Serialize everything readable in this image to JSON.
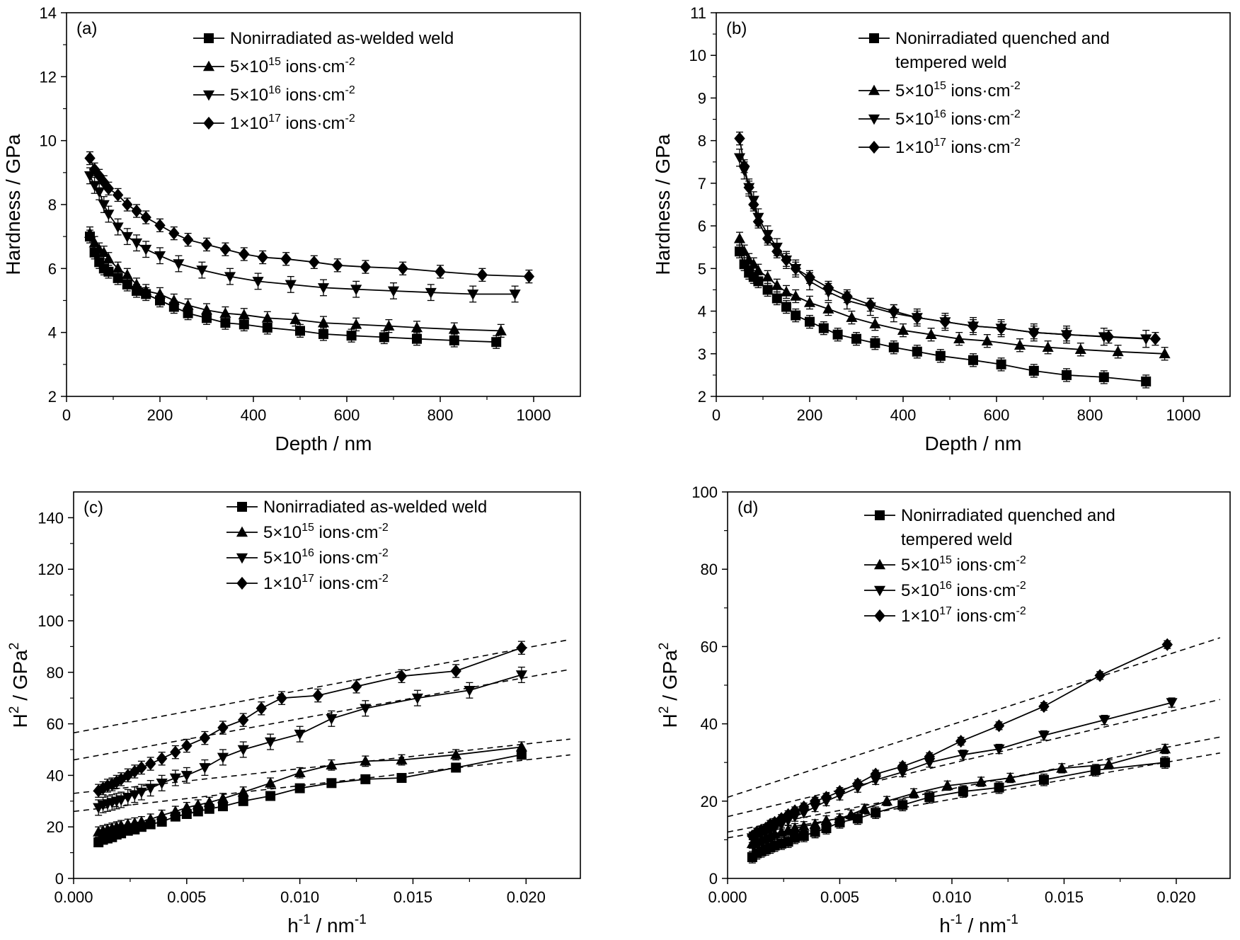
{
  "chart_data": [
    {
      "panel": "(a)",
      "type": "line",
      "xlabel": "Depth / nm",
      "ylabel": "Hardness / GPa",
      "xlim": [
        0,
        1100
      ],
      "ylim": [
        2,
        14
      ],
      "xticks": [
        0,
        200,
        400,
        600,
        800,
        1000
      ],
      "yticks": [
        2,
        4,
        6,
        8,
        10,
        12,
        14
      ],
      "legend": {
        "position": "top-right"
      },
      "series": [
        {
          "name": "Nonirradiated as-welded weld",
          "marker": "square",
          "x": [
            50,
            60,
            70,
            80,
            90,
            110,
            130,
            150,
            170,
            200,
            230,
            260,
            300,
            340,
            380,
            430,
            500,
            550,
            610,
            680,
            750,
            830,
            920
          ],
          "y": [
            7.0,
            6.5,
            6.2,
            6.0,
            5.9,
            5.7,
            5.5,
            5.3,
            5.2,
            5.0,
            4.8,
            4.6,
            4.45,
            4.3,
            4.25,
            4.15,
            4.05,
            3.95,
            3.9,
            3.85,
            3.8,
            3.75,
            3.7
          ],
          "err": 0.2
        },
        {
          "name": "5×10<sup>15</sup> ions·cm<sup>-2</sup>",
          "marker": "triangle-up",
          "x": [
            50,
            60,
            70,
            80,
            90,
            110,
            130,
            150,
            170,
            200,
            230,
            260,
            300,
            340,
            380,
            430,
            490,
            550,
            620,
            690,
            750,
            830,
            930
          ],
          "y": [
            7.1,
            6.8,
            6.6,
            6.5,
            6.3,
            6.0,
            5.8,
            5.5,
            5.3,
            5.2,
            5.0,
            4.85,
            4.7,
            4.6,
            4.55,
            4.45,
            4.4,
            4.3,
            4.25,
            4.2,
            4.15,
            4.1,
            4.05
          ],
          "err": 0.2
        },
        {
          "name": "5×10<sup>16</sup> ions·cm<sup>-2</sup>",
          "marker": "triangle-down",
          "x": [
            50,
            60,
            70,
            80,
            90,
            110,
            130,
            150,
            170,
            200,
            240,
            290,
            350,
            410,
            480,
            550,
            620,
            700,
            780,
            870,
            960
          ],
          "y": [
            8.9,
            8.6,
            8.4,
            8.0,
            7.7,
            7.3,
            7.0,
            6.8,
            6.6,
            6.4,
            6.15,
            5.95,
            5.75,
            5.6,
            5.5,
            5.4,
            5.35,
            5.3,
            5.25,
            5.2,
            5.2
          ],
          "err": 0.25
        },
        {
          "name": "1×10<sup>17</sup> ions·cm<sup>-2</sup>",
          "marker": "diamond",
          "x": [
            50,
            60,
            70,
            80,
            90,
            110,
            130,
            150,
            170,
            200,
            230,
            260,
            300,
            340,
            380,
            420,
            470,
            530,
            580,
            640,
            720,
            800,
            890,
            990
          ],
          "y": [
            9.45,
            9.1,
            8.9,
            8.7,
            8.5,
            8.3,
            8.0,
            7.8,
            7.6,
            7.35,
            7.1,
            6.9,
            6.75,
            6.6,
            6.45,
            6.35,
            6.3,
            6.2,
            6.1,
            6.05,
            6.0,
            5.9,
            5.8,
            5.75
          ],
          "err": 0.2
        }
      ]
    },
    {
      "panel": "(b)",
      "type": "line",
      "xlabel": "Depth / nm",
      "ylabel": "Hardness / GPa",
      "xlim": [
        0,
        1100
      ],
      "ylim": [
        2,
        11
      ],
      "xticks": [
        0,
        200,
        400,
        600,
        800,
        1000
      ],
      "yticks": [
        2,
        3,
        4,
        5,
        6,
        7,
        8,
        9,
        10,
        11
      ],
      "legend": {
        "position": "top-right"
      },
      "series": [
        {
          "name": "Nonirradiated quenched and|tempered weld",
          "marker": "square",
          "x": [
            50,
            60,
            70,
            80,
            90,
            110,
            130,
            150,
            170,
            200,
            230,
            260,
            300,
            340,
            380,
            430,
            480,
            550,
            610,
            680,
            750,
            830,
            920
          ],
          "y": [
            5.4,
            5.1,
            4.9,
            4.8,
            4.7,
            4.5,
            4.3,
            4.1,
            3.9,
            3.75,
            3.6,
            3.45,
            3.35,
            3.25,
            3.15,
            3.05,
            2.95,
            2.85,
            2.75,
            2.6,
            2.5,
            2.45,
            2.35
          ],
          "err": 0.15
        },
        {
          "name": "5×10<sup>15</sup> ions·cm<sup>-2</sup>",
          "marker": "triangle-up",
          "x": [
            50,
            60,
            70,
            80,
            90,
            110,
            130,
            150,
            170,
            200,
            240,
            290,
            340,
            400,
            460,
            520,
            580,
            650,
            710,
            780,
            860,
            960
          ],
          "y": [
            5.7,
            5.4,
            5.2,
            5.1,
            4.95,
            4.8,
            4.6,
            4.45,
            4.35,
            4.2,
            4.05,
            3.85,
            3.7,
            3.55,
            3.45,
            3.35,
            3.3,
            3.2,
            3.15,
            3.1,
            3.05,
            3.0
          ],
          "err": 0.15
        },
        {
          "name": "5×10<sup>16</sup> ions·cm<sup>-2</sup>",
          "marker": "triangle-down",
          "x": [
            50,
            60,
            70,
            80,
            90,
            110,
            130,
            150,
            170,
            200,
            240,
            280,
            330,
            380,
            430,
            490,
            550,
            610,
            680,
            750,
            830,
            920
          ],
          "y": [
            7.6,
            7.3,
            6.9,
            6.6,
            6.2,
            5.8,
            5.5,
            5.2,
            5.0,
            4.7,
            4.45,
            4.25,
            4.1,
            3.95,
            3.85,
            3.75,
            3.65,
            3.6,
            3.5,
            3.45,
            3.4,
            3.35
          ],
          "err": 0.2
        },
        {
          "name": "1×10<sup>17</sup> ions·cm<sup>-2</sup>",
          "marker": "diamond",
          "x": [
            50,
            60,
            70,
            80,
            90,
            110,
            130,
            150,
            170,
            200,
            240,
            280,
            330,
            380,
            430,
            490,
            550,
            610,
            680,
            750,
            840,
            940
          ],
          "y": [
            8.05,
            7.4,
            6.9,
            6.5,
            6.1,
            5.7,
            5.4,
            5.2,
            5.0,
            4.8,
            4.55,
            4.35,
            4.15,
            4.0,
            3.85,
            3.75,
            3.65,
            3.6,
            3.5,
            3.45,
            3.4,
            3.35
          ],
          "err": 0.15
        }
      ]
    },
    {
      "panel": "(c)",
      "type": "line",
      "xlabel": "h<sup>-1</sup> / nm<sup>-1</sup>",
      "ylabel": "H<sup>2</sup> / GPa<sup>2</sup>",
      "xlim": [
        0.0,
        0.0224
      ],
      "ylim": [
        0,
        150
      ],
      "xticks": [
        0.0,
        0.005,
        0.01,
        0.015,
        0.02
      ],
      "xtick_labels": [
        "0.000",
        "0.005",
        "0.010",
        "0.015",
        "0.020"
      ],
      "yticks": [
        0,
        20,
        40,
        60,
        80,
        100,
        120,
        140
      ],
      "legend": {
        "position": "top-right"
      },
      "series": [
        {
          "name": "Nonirradiated as-welded weld",
          "marker": "square",
          "x": [
            0.0011,
            0.0013,
            0.0015,
            0.0017,
            0.0019,
            0.0021,
            0.0024,
            0.0027,
            0.003,
            0.0034,
            0.0039,
            0.0045,
            0.005,
            0.0055,
            0.006,
            0.0066,
            0.0075,
            0.0087,
            0.01,
            0.0114,
            0.0129,
            0.0145,
            0.0169,
            0.0198
          ],
          "y": [
            14,
            15,
            15.5,
            16,
            17,
            17.5,
            18.5,
            19,
            20,
            21,
            22,
            24,
            25,
            26,
            27,
            28,
            30,
            32,
            35,
            37,
            38.5,
            39,
            43,
            48
          ],
          "err": 1.5,
          "fit": [
            26,
            1000
          ]
        },
        {
          "name": "5×10<sup>15</sup> ions·cm<sup>-2</sup>",
          "marker": "triangle-up",
          "x": [
            0.0011,
            0.0013,
            0.0015,
            0.0017,
            0.0019,
            0.0021,
            0.0024,
            0.0027,
            0.003,
            0.0034,
            0.0039,
            0.0045,
            0.005,
            0.0055,
            0.006,
            0.0066,
            0.0075,
            0.0087,
            0.01,
            0.0114,
            0.0129,
            0.0145,
            0.0169,
            0.0198
          ],
          "y": [
            18,
            18.5,
            19,
            19.5,
            20,
            20.5,
            21,
            21.5,
            22,
            23,
            24.5,
            26,
            27.5,
            28.5,
            29.5,
            31,
            33.5,
            37,
            41,
            44,
            45.5,
            46,
            48,
            51
          ],
          "err": 2,
          "fit": [
            33,
            960
          ]
        },
        {
          "name": "5×10<sup>16</sup> ions·cm<sup>-2</sup>",
          "marker": "triangle-down",
          "x": [
            0.0011,
            0.0013,
            0.0015,
            0.0017,
            0.0019,
            0.0021,
            0.0024,
            0.0027,
            0.003,
            0.0034,
            0.0039,
            0.0045,
            0.005,
            0.0058,
            0.0066,
            0.0075,
            0.0087,
            0.01,
            0.0114,
            0.0129,
            0.0152,
            0.0175,
            0.0198
          ],
          "y": [
            27.5,
            28.5,
            29,
            29.5,
            30,
            30.5,
            31.5,
            32.5,
            33.5,
            35,
            37,
            39,
            40,
            43,
            47,
            50,
            53,
            56,
            62,
            66,
            70,
            73,
            79
          ],
          "err": 3,
          "fit": [
            46,
            1600
          ]
        },
        {
          "name": "1×10<sup>17</sup> ions·cm<sup>-2</sup>",
          "marker": "diamond",
          "x": [
            0.0011,
            0.0013,
            0.0015,
            0.0017,
            0.0019,
            0.0021,
            0.0024,
            0.0027,
            0.003,
            0.0034,
            0.0039,
            0.0045,
            0.005,
            0.0058,
            0.0066,
            0.0075,
            0.0083,
            0.0092,
            0.0108,
            0.0125,
            0.0145,
            0.0169,
            0.0198
          ],
          "y": [
            34,
            35,
            36,
            36.5,
            37.5,
            38.5,
            40,
            41.5,
            43,
            44.5,
            46.5,
            49,
            51.5,
            54.5,
            58.5,
            61.5,
            66,
            70,
            71,
            74.5,
            78.5,
            80.5,
            89.5
          ],
          "err": 2.5,
          "fit": [
            56.5,
            1650
          ]
        }
      ]
    },
    {
      "panel": "(d)",
      "type": "line",
      "xlabel": "h<sup>-1</sup> / nm<sup>-1</sup>",
      "ylabel": "H<sup>2</sup> / GPa<sup>2</sup>",
      "xlim": [
        0.0,
        0.0224
      ],
      "ylim": [
        0,
        100
      ],
      "xticks": [
        0.0,
        0.005,
        0.01,
        0.015,
        0.02
      ],
      "xtick_labels": [
        "0.000",
        "0.005",
        "0.010",
        "0.015",
        "0.020"
      ],
      "yticks": [
        0,
        20,
        40,
        60,
        80,
        100
      ],
      "legend": {
        "position": "top-right"
      },
      "series": [
        {
          "name": "Nonirradiated quenched and|tempered weld",
          "marker": "square",
          "x": [
            0.0011,
            0.0013,
            0.0015,
            0.0017,
            0.0019,
            0.0021,
            0.0024,
            0.0027,
            0.003,
            0.0034,
            0.0039,
            0.0044,
            0.005,
            0.0058,
            0.0066,
            0.0078,
            0.009,
            0.0105,
            0.0121,
            0.0141,
            0.0164,
            0.0195
          ],
          "y": [
            5.5,
            6.5,
            7,
            7.5,
            8,
            8.5,
            9,
            9.5,
            10.5,
            11,
            12,
            13,
            14.5,
            15.5,
            17,
            19,
            21,
            22.5,
            23.5,
            25.5,
            28,
            30
          ],
          "err": 1.5,
          "fit": [
            10.5,
            1000
          ]
        },
        {
          "name": "5×10<sup>15</sup> ions·cm<sup>-2</sup>",
          "marker": "triangle-up",
          "x": [
            0.0011,
            0.0013,
            0.0015,
            0.0017,
            0.0019,
            0.0021,
            0.0024,
            0.0027,
            0.003,
            0.0034,
            0.0039,
            0.0044,
            0.005,
            0.0055,
            0.0061,
            0.0071,
            0.0083,
            0.0098,
            0.0113,
            0.0126,
            0.0149,
            0.017,
            0.0195
          ],
          "y": [
            9,
            9.5,
            10,
            10.5,
            11,
            11.5,
            12,
            12.5,
            13,
            13.5,
            14,
            15,
            15.5,
            16.5,
            18,
            20,
            22,
            24,
            25,
            26,
            28.5,
            29.5,
            33.5
          ],
          "err": 1.2,
          "fit": [
            12,
            1120
          ]
        },
        {
          "name": "5×10<sup>16</sup> ions·cm<sup>-2</sup>",
          "marker": "triangle-down",
          "x": [
            0.0011,
            0.0013,
            0.0015,
            0.0017,
            0.0019,
            0.0021,
            0.0024,
            0.0027,
            0.003,
            0.0034,
            0.0039,
            0.0044,
            0.005,
            0.0058,
            0.0066,
            0.0078,
            0.009,
            0.0105,
            0.0121,
            0.0141,
            0.0168,
            0.0198
          ],
          "y": [
            10.5,
            11,
            11.5,
            12,
            12.5,
            13,
            14,
            15,
            16,
            17,
            18.5,
            20,
            21.5,
            23.5,
            25.5,
            27.5,
            30,
            32,
            33.5,
            37,
            41,
            45.5
          ],
          "err": 1.2,
          "fit": [
            16,
            1380
          ]
        },
        {
          "name": "1×10<sup>17</sup> ions·cm<sup>-2</sup>",
          "marker": "diamond",
          "x": [
            0.0011,
            0.0013,
            0.0015,
            0.0017,
            0.0019,
            0.0021,
            0.0024,
            0.0027,
            0.003,
            0.0034,
            0.0039,
            0.0044,
            0.005,
            0.0058,
            0.0066,
            0.0078,
            0.009,
            0.0104,
            0.0121,
            0.0141,
            0.0166,
            0.0196
          ],
          "y": [
            11,
            12,
            12.5,
            13,
            14,
            14.5,
            15.5,
            16.5,
            17.5,
            18.5,
            20,
            21,
            22.5,
            24.5,
            27,
            29,
            31.5,
            35.5,
            39.5,
            44.5,
            52.5,
            60.5
          ],
          "err": 1.0,
          "fit": [
            21,
            1880
          ]
        }
      ]
    }
  ]
}
